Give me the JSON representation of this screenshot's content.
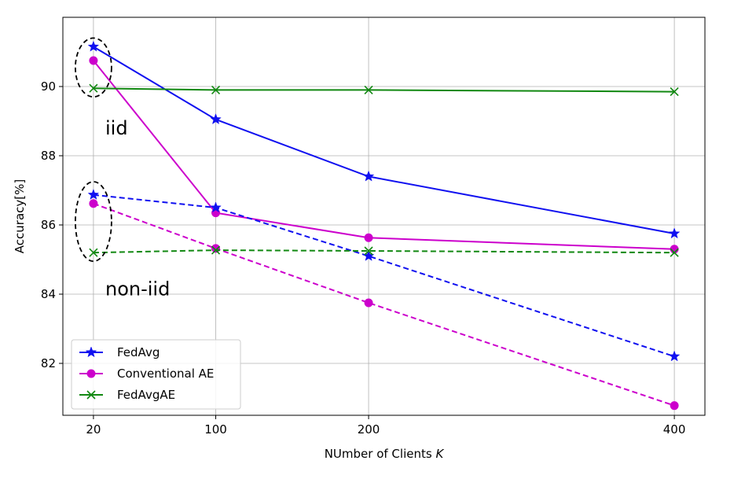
{
  "chart_data": {
    "type": "line",
    "x": [
      20,
      100,
      200,
      400
    ],
    "xlabel": "NUmber of Clients K",
    "xlabel_main": "NUmber of Clients ",
    "xlabel_var": "K",
    "ylabel": "Accuracy[%]",
    "xlim": [
      0,
      420
    ],
    "ylim": [
      80.5,
      92.0
    ],
    "xticks": [
      20,
      100,
      200,
      400
    ],
    "yticks": [
      82,
      84,
      86,
      88,
      90
    ],
    "grid": true,
    "legend_position": "lower-left",
    "legend": [
      "FedAvg",
      "Conventional AE",
      "FedAvgAE"
    ],
    "series": [
      {
        "name": "FedAvg",
        "group": "iid",
        "style": "solid",
        "marker": "star",
        "color": "#1010f0",
        "values": [
          91.15,
          89.05,
          87.4,
          85.75
        ]
      },
      {
        "name": "Conventional AE",
        "group": "iid",
        "style": "solid",
        "marker": "circle",
        "color": "#cc00cc",
        "values": [
          90.75,
          86.35,
          85.63,
          85.3
        ]
      },
      {
        "name": "FedAvgAE",
        "group": "iid",
        "style": "solid",
        "marker": "x",
        "color": "#118811",
        "values": [
          89.95,
          89.9,
          89.9,
          89.85
        ]
      },
      {
        "name": "FedAvg",
        "group": "non-iid",
        "style": "dashed",
        "marker": "star",
        "color": "#1010f0",
        "values": [
          86.87,
          86.5,
          85.1,
          82.2
        ]
      },
      {
        "name": "Conventional AE",
        "group": "non-iid",
        "style": "dashed",
        "marker": "circle",
        "color": "#cc00cc",
        "values": [
          86.62,
          85.32,
          83.75,
          80.78
        ]
      },
      {
        "name": "FedAvgAE",
        "group": "non-iid",
        "style": "dashed",
        "marker": "x",
        "color": "#118811",
        "values": [
          85.2,
          85.27,
          85.25,
          85.2
        ]
      }
    ],
    "annotations": [
      {
        "text": "iid",
        "x": 20,
        "y": 88.8,
        "ellipse_center_y": 90.55,
        "ellipse_half_height_y": 0.85
      },
      {
        "text": "non-iid",
        "x": 20,
        "y": 84.15,
        "ellipse_center_y": 86.1,
        "ellipse_half_height_y": 1.15
      }
    ]
  }
}
